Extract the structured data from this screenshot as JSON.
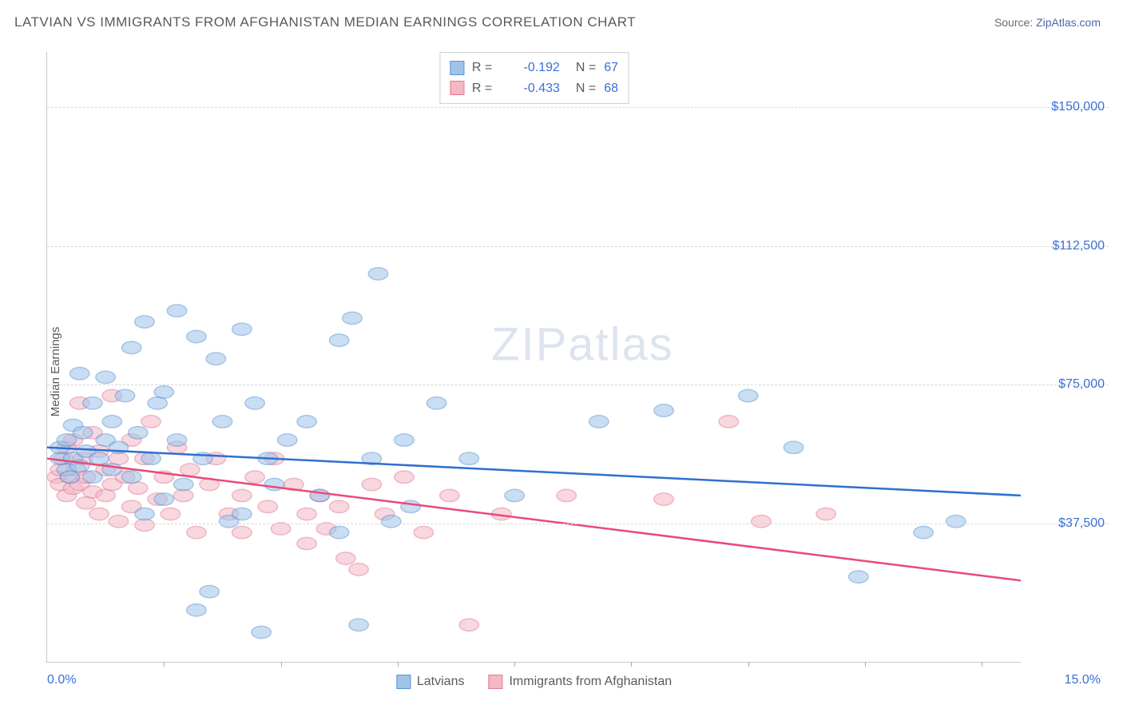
{
  "header": {
    "title": "LATVIAN VS IMMIGRANTS FROM AFGHANISTAN MEDIAN EARNINGS CORRELATION CHART",
    "source_prefix": "Source: ",
    "source_link": "ZipAtlas.com"
  },
  "ylabel": "Median Earnings",
  "chart": {
    "type": "scatter",
    "x_range": [
      0,
      15
    ],
    "y_range": [
      0,
      165000
    ],
    "x_ticks_pct": [
      1.8,
      3.6,
      5.4,
      7.2,
      9.0,
      10.8,
      12.6,
      14.4
    ],
    "x_min_label": "0.0%",
    "x_max_label": "15.0%",
    "y_gridlines": [
      37500,
      75000,
      112500,
      150000
    ],
    "y_tick_labels": [
      "$37,500",
      "$75,000",
      "$112,500",
      "$150,000"
    ],
    "grid_color": "#d8d8d8",
    "background_color": "#ffffff",
    "axis_label_color": "#3b6fd6",
    "marker_radius": 10,
    "marker_opacity": 0.55,
    "line_width": 2.5
  },
  "series": [
    {
      "name": "Latvians",
      "fill": "#9ec4ea",
      "stroke": "#5a93d1",
      "line_color": "#2f6fd0",
      "R": "-0.192",
      "N": "67",
      "regression": {
        "x1": 0,
        "y1": 58000,
        "x2": 15,
        "y2": 45000
      },
      "points": [
        [
          0.2,
          55000
        ],
        [
          0.2,
          58000
        ],
        [
          0.3,
          52000
        ],
        [
          0.3,
          60000
        ],
        [
          0.35,
          50000
        ],
        [
          0.4,
          64000
        ],
        [
          0.4,
          55000
        ],
        [
          0.5,
          78000
        ],
        [
          0.5,
          53000
        ],
        [
          0.55,
          62000
        ],
        [
          0.6,
          57000
        ],
        [
          0.7,
          70000
        ],
        [
          0.7,
          50000
        ],
        [
          0.8,
          55000
        ],
        [
          0.9,
          60000
        ],
        [
          0.9,
          77000
        ],
        [
          1.0,
          52000
        ],
        [
          1.0,
          65000
        ],
        [
          1.1,
          58000
        ],
        [
          1.2,
          72000
        ],
        [
          1.3,
          85000
        ],
        [
          1.3,
          50000
        ],
        [
          1.4,
          62000
        ],
        [
          1.5,
          92000
        ],
        [
          1.5,
          40000
        ],
        [
          1.6,
          55000
        ],
        [
          1.7,
          70000
        ],
        [
          1.8,
          73000
        ],
        [
          1.8,
          44000
        ],
        [
          2.0,
          95000
        ],
        [
          2.0,
          60000
        ],
        [
          2.1,
          48000
        ],
        [
          2.3,
          88000
        ],
        [
          2.3,
          14000
        ],
        [
          2.4,
          55000
        ],
        [
          2.5,
          19000
        ],
        [
          2.6,
          82000
        ],
        [
          2.7,
          65000
        ],
        [
          2.8,
          38000
        ],
        [
          3.0,
          40000
        ],
        [
          3.0,
          90000
        ],
        [
          3.2,
          70000
        ],
        [
          3.3,
          8000
        ],
        [
          3.4,
          55000
        ],
        [
          3.5,
          48000
        ],
        [
          3.7,
          60000
        ],
        [
          4.0,
          65000
        ],
        [
          4.2,
          45000
        ],
        [
          4.5,
          87000
        ],
        [
          4.5,
          35000
        ],
        [
          4.7,
          93000
        ],
        [
          4.8,
          10000
        ],
        [
          5.0,
          55000
        ],
        [
          5.1,
          105000
        ],
        [
          5.3,
          38000
        ],
        [
          5.5,
          60000
        ],
        [
          5.6,
          42000
        ],
        [
          6.0,
          70000
        ],
        [
          6.5,
          55000
        ],
        [
          7.2,
          45000
        ],
        [
          8.5,
          65000
        ],
        [
          9.5,
          68000
        ],
        [
          10.8,
          72000
        ],
        [
          11.5,
          58000
        ],
        [
          12.5,
          23000
        ],
        [
          13.5,
          35000
        ],
        [
          14.0,
          38000
        ]
      ]
    },
    {
      "name": "Immigrants from Afghanistan",
      "fill": "#f4b8c5",
      "stroke": "#e07a94",
      "line_color": "#e84a7a",
      "R": "-0.433",
      "N": "68",
      "regression": {
        "x1": 0,
        "y1": 55000,
        "x2": 15,
        "y2": 22000
      },
      "points": [
        [
          0.15,
          50000
        ],
        [
          0.2,
          52000
        ],
        [
          0.2,
          48000
        ],
        [
          0.25,
          55000
        ],
        [
          0.3,
          58000
        ],
        [
          0.3,
          45000
        ],
        [
          0.35,
          50000
        ],
        [
          0.4,
          60000
        ],
        [
          0.4,
          47000
        ],
        [
          0.45,
          52000
        ],
        [
          0.5,
          70000
        ],
        [
          0.5,
          48000
        ],
        [
          0.55,
          55000
        ],
        [
          0.6,
          50000
        ],
        [
          0.6,
          43000
        ],
        [
          0.7,
          62000
        ],
        [
          0.7,
          46000
        ],
        [
          0.8,
          57000
        ],
        [
          0.8,
          40000
        ],
        [
          0.9,
          52000
        ],
        [
          0.9,
          45000
        ],
        [
          1.0,
          72000
        ],
        [
          1.0,
          48000
        ],
        [
          1.1,
          55000
        ],
        [
          1.1,
          38000
        ],
        [
          1.2,
          50000
        ],
        [
          1.3,
          60000
        ],
        [
          1.3,
          42000
        ],
        [
          1.4,
          47000
        ],
        [
          1.5,
          55000
        ],
        [
          1.5,
          37000
        ],
        [
          1.6,
          65000
        ],
        [
          1.7,
          44000
        ],
        [
          1.8,
          50000
        ],
        [
          1.9,
          40000
        ],
        [
          2.0,
          58000
        ],
        [
          2.1,
          45000
        ],
        [
          2.2,
          52000
        ],
        [
          2.3,
          35000
        ],
        [
          2.5,
          48000
        ],
        [
          2.6,
          55000
        ],
        [
          2.8,
          40000
        ],
        [
          3.0,
          45000
        ],
        [
          3.0,
          35000
        ],
        [
          3.2,
          50000
        ],
        [
          3.4,
          42000
        ],
        [
          3.5,
          55000
        ],
        [
          3.6,
          36000
        ],
        [
          3.8,
          48000
        ],
        [
          4.0,
          32000
        ],
        [
          4.0,
          40000
        ],
        [
          4.2,
          45000
        ],
        [
          4.3,
          36000
        ],
        [
          4.5,
          42000
        ],
        [
          4.6,
          28000
        ],
        [
          4.8,
          25000
        ],
        [
          5.0,
          48000
        ],
        [
          5.2,
          40000
        ],
        [
          5.5,
          50000
        ],
        [
          5.8,
          35000
        ],
        [
          6.2,
          45000
        ],
        [
          6.5,
          10000
        ],
        [
          7.0,
          40000
        ],
        [
          8.0,
          45000
        ],
        [
          9.5,
          44000
        ],
        [
          10.5,
          65000
        ],
        [
          11.0,
          38000
        ],
        [
          12.0,
          40000
        ]
      ]
    }
  ],
  "bottom_legend": [
    {
      "label": "Latvians",
      "fill": "#9ec4ea",
      "stroke": "#5a93d1"
    },
    {
      "label": "Immigrants from Afghanistan",
      "fill": "#f4b8c5",
      "stroke": "#e07a94"
    }
  ],
  "watermark": {
    "part1": "ZIP",
    "part2": "atlas"
  }
}
